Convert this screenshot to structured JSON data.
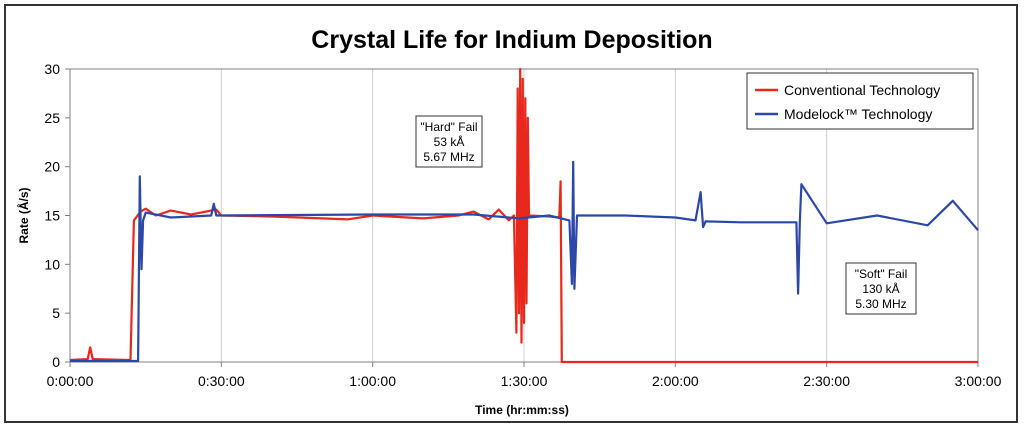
{
  "chart_data": {
    "type": "line",
    "title": "Crystal Life for Indium Deposition",
    "xlabel": "Time (hr:mm:ss)",
    "ylabel": "Rate (Å/s)",
    "x_unit": "hh:mm:ss",
    "xlim": [
      "0:00:00",
      "3:00:00"
    ],
    "ylim": [
      0,
      30
    ],
    "x_ticks": [
      "0:00:00",
      "0:30:00",
      "1:00:00",
      "1:30:00",
      "2:00:00",
      "2:30:00",
      "3:00:00"
    ],
    "y_ticks": [
      0,
      5,
      10,
      15,
      20,
      25,
      30
    ],
    "grid": "vertical",
    "legend_position": "top-right",
    "legend": [
      "Conventional Technology",
      "Modelock™ Technology"
    ],
    "series": [
      {
        "name": "Conventional Technology",
        "color": "#e8281c",
        "points": [
          [
            "0:00:00",
            0.2
          ],
          [
            "0:03:30",
            0.3
          ],
          [
            "0:04:00",
            1.5
          ],
          [
            "0:04:30",
            0.3
          ],
          [
            "0:12:00",
            0.2
          ],
          [
            "0:12:40",
            14.5
          ],
          [
            "0:14:00",
            15.4
          ],
          [
            "0:15:00",
            15.7
          ],
          [
            "0:17:00",
            15.0
          ],
          [
            "0:20:00",
            15.5
          ],
          [
            "0:24:00",
            15.1
          ],
          [
            "0:29:00",
            15.6
          ],
          [
            "0:30:00",
            15.0
          ],
          [
            "0:40:00",
            14.9
          ],
          [
            "0:50:00",
            14.7
          ],
          [
            "0:55:00",
            14.6
          ],
          [
            "1:00:00",
            15.0
          ],
          [
            "1:10:00",
            14.7
          ],
          [
            "1:17:00",
            15.0
          ],
          [
            "1:20:00",
            15.4
          ],
          [
            "1:23:00",
            14.6
          ],
          [
            "1:25:00",
            15.6
          ],
          [
            "1:27:00",
            14.5
          ],
          [
            "1:28:00",
            15.0
          ],
          [
            "1:28:30",
            3
          ],
          [
            "1:28:45",
            28
          ],
          [
            "1:29:00",
            5
          ],
          [
            "1:29:15",
            30
          ],
          [
            "1:29:30",
            2
          ],
          [
            "1:29:45",
            29
          ],
          [
            "1:30:00",
            4
          ],
          [
            "1:30:15",
            27
          ],
          [
            "1:30:30",
            6
          ],
          [
            "1:30:45",
            25
          ],
          [
            "1:31:00",
            15
          ],
          [
            "1:35:00",
            14.9
          ],
          [
            "1:37:00",
            14.8
          ],
          [
            "1:37:15",
            18.5
          ],
          [
            "1:37:30",
            0
          ],
          [
            "3:00:00",
            0
          ]
        ]
      },
      {
        "name": "Modelock™ Technology",
        "color": "#2b48a8",
        "points": [
          [
            "0:00:00",
            0.1
          ],
          [
            "0:13:30",
            0.1
          ],
          [
            "0:13:50",
            19
          ],
          [
            "0:14:10",
            9.5
          ],
          [
            "0:14:30",
            14.5
          ],
          [
            "0:15:00",
            15.3
          ],
          [
            "0:20:00",
            14.8
          ],
          [
            "0:28:00",
            15.0
          ],
          [
            "0:28:30",
            16.2
          ],
          [
            "0:29:00",
            15.0
          ],
          [
            "1:00:00",
            15.1
          ],
          [
            "1:20:00",
            15.1
          ],
          [
            "1:29:00",
            14.7
          ],
          [
            "1:35:00",
            15.0
          ],
          [
            "1:39:00",
            14.5
          ],
          [
            "1:39:30",
            8
          ],
          [
            "1:39:45",
            20.5
          ],
          [
            "1:40:00",
            7.5
          ],
          [
            "1:40:30",
            15.0
          ],
          [
            "1:50:00",
            15.0
          ],
          [
            "2:00:00",
            14.8
          ],
          [
            "2:04:00",
            14.5
          ],
          [
            "2:05:00",
            17.4
          ],
          [
            "2:05:30",
            13.8
          ],
          [
            "2:06:00",
            14.4
          ],
          [
            "2:13:00",
            14.3
          ],
          [
            "2:24:00",
            14.3
          ],
          [
            "2:24:20",
            7.0
          ],
          [
            "2:24:40",
            14.3
          ],
          [
            "2:25:00",
            18.2
          ],
          [
            "2:30:00",
            14.2
          ],
          [
            "2:40:00",
            15.0
          ],
          [
            "2:50:00",
            14.0
          ],
          [
            "2:55:00",
            16.5
          ],
          [
            "3:00:00",
            13.5
          ]
        ]
      }
    ],
    "annotations": [
      {
        "lines": [
          "\"Hard\" Fail",
          "53 kÅ",
          "5.67 MHz"
        ]
      },
      {
        "lines": [
          "\"Soft\" Fail",
          "130 kÅ",
          "5.30 MHz"
        ]
      }
    ]
  }
}
